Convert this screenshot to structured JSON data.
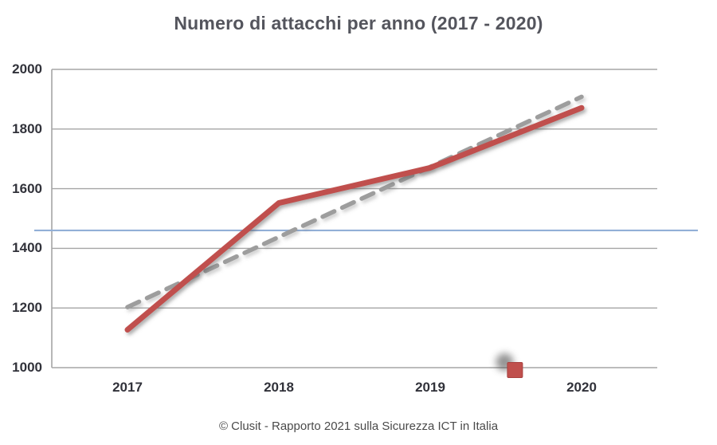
{
  "chart_data": {
    "type": "line",
    "title": "Numero di attacchi per anno (2017 - 2020)",
    "categories": [
      "2017",
      "2018",
      "2019",
      "2020"
    ],
    "series": [
      {
        "name": "attacchi-per-anno-linea-rossa",
        "style": "solid",
        "values": [
          1127,
          1552,
          1670,
          1871
        ]
      },
      {
        "name": "trend-lineare-tratteggiata",
        "style": "dashed",
        "x_indices": [
          0,
          3
        ],
        "values": [
          1203,
          1908
        ]
      }
    ],
    "yticks": [
      1000,
      1200,
      1400,
      1600,
      1800,
      2000
    ],
    "ylim": [
      1000,
      2000
    ],
    "grid": "horizontal",
    "legend": "none",
    "annotations": {
      "reference_line_value": 1460,
      "stray_marker_value": 1000,
      "stray_marker_between": "2019-2020"
    }
  },
  "caption": "© Clusit - Rapporto 2021 sulla Sicurezza ICT in Italia",
  "colors": {
    "red_line": "#c0504d",
    "red_marker_border": "#a8413f",
    "trend_line": "#9d9d9d",
    "reference_line": "#92afd7",
    "grid": "#a5a5a5",
    "title_text": "#54555d",
    "axis_text": "#31323a",
    "caption_text": "#4a4a4a"
  }
}
